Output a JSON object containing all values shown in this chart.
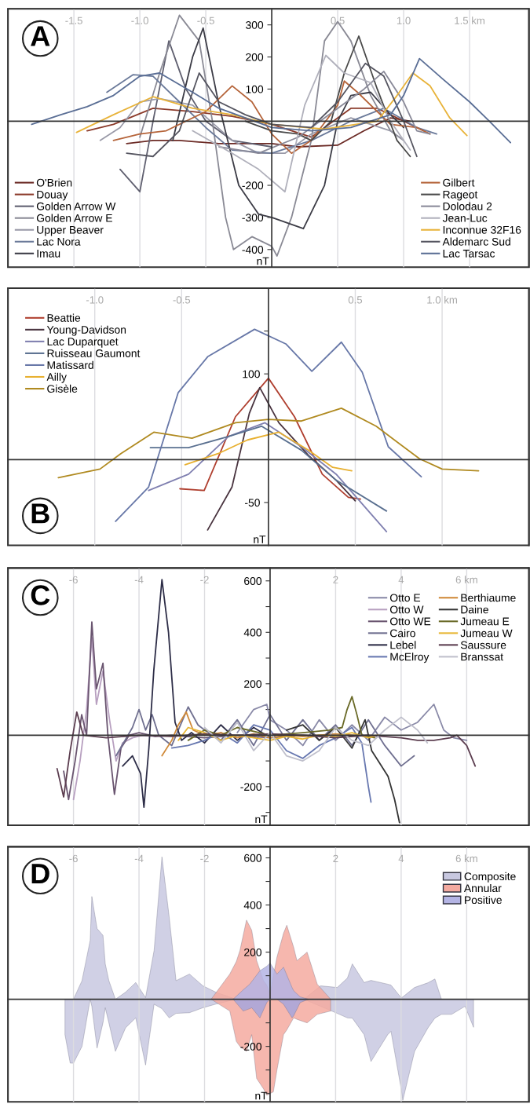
{
  "chart_data": [
    {
      "type": "line",
      "annotations": [
        "A"
      ],
      "ylabel": "nT",
      "xlim": [
        -2.0,
        1.95
      ],
      "ylim": [
        -455,
        350
      ],
      "grid": "x",
      "legend": "bottom",
      "xticks": [
        -1.5,
        {
          "value": -1.0,
          "label": "-1.0"
        },
        -0.5,
        0.5,
        {
          "value": 1.0,
          "label": "1.0"
        },
        {
          "value": 1.5,
          "label": "1.5 km"
        }
      ],
      "yticks": [
        300,
        200,
        100,
        {
          "value": -100,
          "label": null
        },
        -200,
        -300,
        -400
      ],
      "series": [
        {
          "name": "O'Brien",
          "color": "#6b2a25",
          "x": [
            -1.1,
            -0.9,
            -0.7,
            -0.4,
            0,
            0.2,
            0.5,
            0.7,
            0.9,
            1.05
          ],
          "values": [
            -70,
            -60,
            -60,
            -70,
            -70,
            -80,
            -75,
            -30,
            10,
            0
          ]
        },
        {
          "name": "Douay",
          "color": "#8b3a2a",
          "x": [
            -1.4,
            -1.2,
            -0.9,
            -0.6,
            -0.3,
            0,
            0.3,
            0.6,
            0.8,
            1.0,
            1.15
          ],
          "values": [
            -30,
            -10,
            40,
            30,
            15,
            -10,
            -50,
            40,
            40,
            0,
            -30
          ]
        },
        {
          "name": "Golden Arrow W",
          "color": "#606070",
          "x": [
            -1.15,
            -1.0,
            -0.9,
            -0.78,
            -0.65,
            -0.5,
            -0.3,
            0
          ],
          "values": [
            -150,
            -220,
            0,
            250,
            100,
            0,
            -60,
            -80
          ]
        },
        {
          "name": "Golden Arrow E",
          "color": "#8a8a95",
          "x": [
            -1.0,
            -0.85,
            -0.7,
            -0.55,
            -0.45,
            -0.35,
            -0.29,
            -0.15,
            0,
            0.04,
            0.15,
            0.3,
            0.4,
            0.5,
            0.6,
            0.75,
            0.9,
            1.0
          ],
          "values": [
            -50,
            150,
            330,
            250,
            0,
            -300,
            -400,
            -360,
            -390,
            -420,
            -300,
            -60,
            250,
            310,
            250,
            80,
            -30,
            -60
          ]
        },
        {
          "name": "Upper Beaver",
          "color": "#9a9aa8",
          "x": [
            -1.3,
            -1.15,
            -1.0,
            -0.85,
            -0.6,
            -0.3,
            -0.1,
            0.1,
            0.3,
            0.6,
            0.9,
            1.0
          ],
          "values": [
            -60,
            -20,
            60,
            70,
            50,
            -60,
            -100,
            -100,
            -40,
            10,
            -30,
            -60
          ]
        },
        {
          "name": "Lac Nora",
          "color": "#6b7a9a",
          "x": [
            -1.25,
            -1.05,
            -0.9,
            -0.7,
            -0.5,
            -0.3,
            0,
            0.3,
            0.6,
            0.85,
            1.1,
            1.25
          ],
          "values": [
            90,
            145,
            140,
            60,
            -20,
            -90,
            -100,
            -60,
            0,
            40,
            -20,
            -40
          ]
        },
        {
          "name": "Imau",
          "color": "#3c3c46",
          "x": [
            -0.75,
            -0.6,
            -0.52,
            -0.4,
            -0.25,
            -0.1,
            0,
            0.24,
            0.4,
            0.5,
            0.6,
            0.75,
            0.9,
            1.0
          ],
          "values": [
            -60,
            200,
            290,
            50,
            -200,
            -290,
            -300,
            -335,
            -200,
            0,
            80,
            90,
            20,
            -20
          ]
        },
        {
          "name": "Gilbert",
          "color": "#b5643a",
          "x": [
            -1.2,
            -1.0,
            -0.8,
            -0.5,
            -0.3,
            -0.15,
            0,
            0.15,
            0.3,
            0.5,
            0.55,
            0.65,
            0.9,
            1.1,
            1.2
          ],
          "values": [
            -60,
            -40,
            -30,
            30,
            110,
            60,
            -40,
            -100,
            -60,
            50,
            125,
            90,
            -10,
            -20,
            -40
          ]
        },
        {
          "name": "Rageot",
          "color": "#4a4a4a",
          "x": [
            -0.2,
            0,
            0.2,
            0.3,
            0.45,
            0.55,
            0.66,
            0.8,
            0.95,
            1.05
          ],
          "values": [
            0,
            -30,
            -40,
            -60,
            0,
            150,
            265,
            100,
            -60,
            -110
          ]
        },
        {
          "name": "Dolodau 2",
          "color": "#8a8a99",
          "x": [
            -0.4,
            -0.1,
            0.2,
            0.5,
            0.7,
            0.85,
            1.0,
            1.1,
            1.2
          ],
          "values": [
            -80,
            -100,
            -50,
            40,
            100,
            155,
            60,
            -30,
            -40
          ]
        },
        {
          "name": "Jean-Luc",
          "color": "#b0b0bb",
          "x": [
            -0.6,
            -0.3,
            -0.1,
            0.1,
            0.25,
            0.41,
            0.55,
            0.75,
            0.9,
            1.05
          ],
          "values": [
            -30,
            -100,
            -150,
            -220,
            50,
            205,
            150,
            120,
            0,
            -90
          ]
        },
        {
          "name": "Inconnue 32F16",
          "color": "#e8b33a",
          "x": [
            -1.48,
            -1.2,
            -0.9,
            -0.6,
            -0.3,
            0,
            0.4,
            0.8,
            0.95,
            1.07,
            1.2,
            1.35,
            1.48
          ],
          "values": [
            -35,
            20,
            76,
            40,
            20,
            -10,
            -25,
            0,
            80,
            150,
            110,
            10,
            -45
          ]
        },
        {
          "name": "Aldemarc Sud",
          "color": "#555560",
          "x": [
            -1.1,
            -0.9,
            -0.7,
            -0.55,
            -0.4,
            -0.2,
            0,
            0.3,
            0.5,
            0.71,
            0.85,
            1.0,
            1.1
          ],
          "values": [
            -100,
            -110,
            -30,
            150,
            60,
            20,
            -10,
            -20,
            60,
            180,
            140,
            0,
            -110
          ]
        },
        {
          "name": "Lac Tarsac",
          "color": "#5a6e95",
          "x": [
            -1.82,
            -1.6,
            -1.4,
            -1.2,
            -1.0,
            -0.85,
            -0.6,
            -0.4,
            -0.2,
            0,
            0.3,
            0.6,
            0.9,
            1.0,
            1.12,
            1.3,
            1.5,
            1.65,
            1.81
          ],
          "values": [
            -10,
            20,
            45,
            80,
            140,
            150,
            90,
            40,
            10,
            -20,
            -30,
            -20,
            20,
            80,
            195,
            130,
            60,
            0,
            -67
          ]
        }
      ]
    },
    {
      "type": "line",
      "annotations": [
        "B"
      ],
      "ylabel": "nT",
      "xlim": [
        -1.5,
        1.5
      ],
      "ylim": [
        -100,
        200
      ],
      "grid": "x",
      "legend": "top left",
      "xticks": [
        {
          "value": -1.0,
          "label": "-1.0"
        },
        -0.5,
        0.5,
        {
          "value": 1.0,
          "label": "1.0 km"
        }
      ],
      "yticks": [
        {
          "value": 150,
          "label": null
        },
        100,
        -50
      ],
      "series": [
        {
          "name": "Beattie",
          "color": "#b04030",
          "x": [
            -0.51,
            -0.37,
            -0.19,
            0,
            0.15,
            0.31,
            0.46,
            0.53
          ],
          "values": [
            -34,
            -36,
            50,
            95,
            50,
            -17,
            -44,
            -46
          ]
        },
        {
          "name": "Young-Davidson",
          "color": "#4a3540",
          "x": [
            -0.35,
            -0.21,
            -0.11,
            -0.05,
            0.06,
            0.23,
            0.39,
            0.5
          ],
          "values": [
            -82,
            -32,
            54,
            84,
            43,
            5,
            -24,
            -48
          ]
        },
        {
          "name": "Lac Duparquet",
          "color": "#8080b0",
          "x": [
            -0.69,
            -0.46,
            -0.23,
            -0.02,
            0.19,
            0.39,
            0.68
          ],
          "values": [
            -36,
            -17,
            27,
            43,
            15,
            -17,
            -84
          ]
        },
        {
          "name": "Ruisseau Gaumont",
          "color": "#5a7090",
          "x": [
            -0.68,
            -0.46,
            -0.23,
            -0.04,
            0.19,
            0.39,
            0.68
          ],
          "values": [
            14,
            14,
            27,
            39,
            11,
            -24,
            -60
          ]
        },
        {
          "name": "Matissard",
          "color": "#6878a8",
          "x": [
            -0.88,
            -0.69,
            -0.52,
            -0.35,
            -0.08,
            0.1,
            0.25,
            0.42,
            0.54,
            0.69,
            0.88
          ],
          "values": [
            -72,
            -32,
            78,
            120,
            152,
            135,
            103,
            137,
            102,
            15,
            -20
          ]
        },
        {
          "name": "Ailly",
          "color": "#e8b030",
          "x": [
            -0.48,
            -0.29,
            -0.12,
            0.06,
            0.23,
            0.37,
            0.48
          ],
          "values": [
            -6,
            7,
            23,
            32,
            11,
            -9,
            -13
          ]
        },
        {
          "name": "Gisèle",
          "color": "#b08a20",
          "x": [
            -1.21,
            -0.97,
            -0.85,
            -0.66,
            -0.44,
            -0.19,
            0,
            0.19,
            0.42,
            0.62,
            0.87,
            1.0,
            1.21
          ],
          "values": [
            -21,
            -11,
            7,
            32,
            25,
            43,
            47,
            45,
            60,
            39,
            1,
            -11,
            -13
          ]
        }
      ]
    },
    {
      "type": "line",
      "annotations": [
        "C"
      ],
      "ylabel": "nT",
      "xlim": [
        -8,
        7.9
      ],
      "ylim": [
        -350,
        650
      ],
      "grid": "x",
      "legend": "top right",
      "xticks": [
        -6,
        -4,
        -2,
        2,
        4,
        {
          "value": 6,
          "label": "6 km"
        }
      ],
      "yticks": [
        600,
        {
          "value": 500,
          "label": null
        },
        400,
        {
          "value": 300,
          "label": null
        },
        200,
        {
          "value": 100,
          "label": null
        },
        {
          "value": -100,
          "label": null
        },
        -200,
        {
          "value": -300,
          "label": null
        }
      ],
      "series": [
        {
          "name": "Otto E",
          "color": "#8a8aa8",
          "x": [
            -1.0,
            -0.5,
            -0.1,
            0,
            0.5,
            1.0,
            1.5,
            2.0,
            2.5,
            3.0,
            3.5,
            4.0,
            4.5,
            5.0,
            5.3,
            5.6,
            6.0
          ],
          "values": [
            10,
            100,
            120,
            60,
            20,
            -40,
            60,
            -20,
            40,
            -20,
            70,
            20,
            50,
            120,
            20,
            -10,
            -20
          ]
        },
        {
          "name": "Otto W",
          "color": "#b8a0c0",
          "x": [
            -6.0,
            -5.8,
            -5.6,
            -5.44,
            -5.3,
            -5.1,
            -4.9,
            -4.7,
            -4.5,
            -4.2,
            -3.9,
            -3.5
          ],
          "values": [
            -250,
            -100,
            100,
            380,
            120,
            250,
            60,
            -100,
            -30,
            -10,
            0,
            -5
          ]
        },
        {
          "name": "Otto WE",
          "color": "#6a5570",
          "x": [
            -6.3,
            -6.15,
            -5.95,
            -5.75,
            -5.6,
            -5.44,
            -5.3,
            -5.1,
            -4.95,
            -4.75,
            -4.55,
            -4.3,
            -4.0,
            -3.5,
            -3.0,
            -2.0,
            -1.0,
            0,
            1,
            2,
            3
          ],
          "values": [
            -140,
            -250,
            -100,
            80,
            0,
            440,
            180,
            280,
            0,
            -230,
            -50,
            0,
            10,
            -5,
            0,
            -10,
            0,
            -10,
            0,
            -5,
            0
          ]
        },
        {
          "name": "Cairo",
          "color": "#707090",
          "x": [
            -4.7,
            -4.2,
            -4.0,
            -3.8,
            -3.6,
            -3.4,
            -3.0,
            -2.5,
            -2.2,
            -2.0,
            -1.5,
            -1.0,
            -0.5,
            0,
            0.5,
            1.0,
            1.5,
            2.0,
            2.5,
            3.0,
            3.5,
            4.0,
            4.4
          ],
          "values": [
            -80,
            30,
            100,
            20,
            80,
            0,
            -40,
            110,
            40,
            20,
            -20,
            60,
            -40,
            80,
            -20,
            60,
            -20,
            40,
            -40,
            60,
            -40,
            -120,
            -80
          ]
        },
        {
          "name": "Lebel",
          "color": "#2e2e48",
          "x": [
            -4.5,
            -4.2,
            -3.95,
            -3.85,
            -3.7,
            -3.55,
            -3.3,
            -3.1,
            -2.9,
            -2.7,
            -2.4,
            -2.0,
            -1.5,
            -1.0,
            -0.5,
            0
          ],
          "values": [
            -120,
            -80,
            -150,
            -280,
            -50,
            250,
            605,
            400,
            50,
            -20,
            10,
            -30,
            40,
            -20,
            30,
            -10
          ]
        },
        {
          "name": "McElroy",
          "color": "#6878b0",
          "x": [
            -3.0,
            -2.5,
            -2.0,
            -1.5,
            -1.0,
            -0.5,
            0,
            0.5,
            1.0,
            1.5,
            2.0,
            2.5,
            2.8,
            3.0,
            3.08
          ],
          "values": [
            -50,
            -40,
            -20,
            10,
            -30,
            40,
            20,
            -60,
            -90,
            -40,
            -10,
            30,
            -30,
            -200,
            -260
          ]
        },
        {
          "name": "Berthiaume",
          "color": "#d08a3a",
          "x": [
            -3.3,
            -3.0,
            -2.8,
            -2.56,
            -2.35,
            -2.0,
            -1.5,
            -1.0,
            -0.5,
            0,
            0.5,
            1.0,
            2.0,
            3.0,
            3.3
          ],
          "values": [
            -80,
            -20,
            40,
            90,
            20,
            0,
            10,
            -10,
            5,
            -10,
            0,
            -5,
            5,
            -5,
            0
          ]
        },
        {
          "name": "Daine",
          "color": "#353535",
          "x": [
            0.5,
            1.0,
            1.5,
            2.0,
            2.5,
            2.9,
            3.1,
            3.3,
            3.6,
            3.8,
            3.95
          ],
          "values": [
            20,
            40,
            -20,
            30,
            -50,
            60,
            -60,
            -100,
            -160,
            -250,
            -340
          ]
        },
        {
          "name": "Jumeau E",
          "color": "#6a6a28",
          "x": [
            -2.5,
            -2.0,
            -1.5,
            -1.0,
            0,
            1.0,
            1.8,
            2.2,
            2.35,
            2.5,
            2.65,
            2.8,
            3.2
          ],
          "values": [
            -20,
            20,
            0,
            30,
            0,
            10,
            20,
            30,
            100,
            150,
            80,
            0,
            -10
          ]
        },
        {
          "name": "Jumeau W",
          "color": "#e8b838",
          "x": [
            -2.8,
            -2.5,
            -2.0,
            -1.5,
            -1.0,
            -0.5,
            0,
            0.5,
            1.0,
            1.5,
            2.0,
            2.5,
            3.0,
            3.3
          ],
          "values": [
            -20,
            30,
            10,
            -20,
            0,
            -10,
            -20,
            -5,
            -15,
            0,
            -5,
            10,
            -10,
            0
          ]
        },
        {
          "name": "Saussure",
          "color": "#5c3e50",
          "x": [
            -6.5,
            -6.3,
            -6.1,
            -5.9,
            -5.7,
            -5,
            -4,
            -3,
            -2,
            -1,
            0,
            1,
            2,
            3,
            4,
            4.5,
            5.0,
            5.5,
            5.7,
            6.0,
            6.26
          ],
          "values": [
            -130,
            -240,
            -60,
            90,
            0,
            -10,
            0,
            -5,
            5,
            0,
            5,
            0,
            -10,
            0,
            -10,
            -20,
            -20,
            -10,
            0,
            -40,
            -120
          ]
        },
        {
          "name": "Branssat",
          "color": "#c0c0cc",
          "x": [
            -2.0,
            -1.5,
            -1.0,
            -0.5,
            0,
            0.5,
            1.0,
            1.5,
            2.0,
            2.5,
            3.0,
            3.5,
            4.0,
            4.5,
            4.8
          ],
          "values": [
            30,
            -30,
            50,
            -60,
            10,
            -80,
            -100,
            -60,
            30,
            -20,
            -40,
            20,
            70,
            20,
            -30
          ]
        }
      ]
    },
    {
      "type": "area",
      "annotations": [
        "D"
      ],
      "ylabel": "nT",
      "xlim": [
        -8,
        7.9
      ],
      "ylim": [
        -435,
        647
      ],
      "grid": "x",
      "legend": "top right",
      "xticks": [
        -6,
        -4,
        -2,
        2,
        4,
        {
          "value": 6,
          "label": "6 km"
        }
      ],
      "yticks": [
        600,
        {
          "value": 500,
          "label": null
        },
        400,
        {
          "value": 300,
          "label": null
        },
        200,
        {
          "value": 100,
          "label": null
        },
        {
          "value": -100,
          "label": null
        },
        -200,
        {
          "value": -300,
          "label": null
        },
        {
          "value": -400,
          "label": null
        }
      ],
      "series": [
        {
          "name": "Composite",
          "color": "#c8c8e0",
          "x": [
            -6.26,
            -6.1,
            -6.0,
            -5.74,
            -5.49,
            -5.44,
            -5.28,
            -5.1,
            -5.03,
            -4.92,
            -4.72,
            -4.41,
            -4.1,
            -3.8,
            -3.54,
            -3.3,
            -3.08,
            -2.87,
            -2.46,
            -2.05,
            -1.64,
            -1.03,
            0,
            1.03,
            1.54,
            2.05,
            2.36,
            2.51,
            2.87,
            3.08,
            3.59,
            3.69,
            4.0,
            4.05,
            4.41,
            4.82,
            5.03,
            5.23,
            5.54,
            5.95,
            6.21
          ],
          "values": [
            0,
            0,
            0,
            79,
            250,
            436,
            300,
            271,
            150,
            79,
            0,
            30,
            71,
            7,
            207,
            604,
            350,
            79,
            107,
            57,
            29,
            0,
            0,
            0,
            57,
            50,
            90,
            150,
            71,
            80,
            64,
            60,
            7,
            10,
            50,
            70,
            86,
            0,
            0,
            0,
            0
          ]
        },
        {
          "color": "#c8c8e0",
          "x": [
            -6.26,
            -6.1,
            -6.0,
            -5.74,
            -5.49,
            -5.44,
            -5.28,
            -5.1,
            -5.03,
            -4.92,
            -4.72,
            -4.41,
            -4.1,
            -3.8,
            -3.54,
            -3.3,
            -3.08,
            -2.87,
            -2.46,
            -2.05,
            -1.64,
            -1.03,
            0,
            1.03,
            1.54,
            2.05,
            2.36,
            2.51,
            2.87,
            3.08,
            3.59,
            3.69,
            4.0,
            4.05,
            4.41,
            4.82,
            5.03,
            5.23,
            5.54,
            5.95,
            6.21
          ],
          "values": [
            -150,
            -271,
            -271,
            -200,
            0,
            -30,
            -207,
            -100,
            -36,
            -100,
            -221,
            -121,
            -79,
            -279,
            -21,
            -40,
            -79,
            -60,
            -57,
            -36,
            -20,
            0,
            0,
            0,
            -30,
            -60,
            -79,
            -80,
            -150,
            -264,
            -150,
            -136,
            -380,
            -429,
            -221,
            -121,
            -80,
            -64,
            -64,
            -30,
            -119
          ]
        },
        {
          "name": "Annular",
          "color": "#f4aaa0",
          "x": [
            -1.8,
            -1.23,
            -1.03,
            -0.92,
            -0.72,
            -0.56,
            -0.41,
            -0.2,
            -0.1,
            0,
            0.1,
            0.21,
            0.41,
            0.51,
            0.72,
            0.82,
            1.13,
            1.44,
            1.85
          ],
          "values": [
            0,
            107,
            160,
            207,
            336,
            293,
            164,
            79,
            60,
            21,
            100,
            179,
            280,
            314,
            220,
            164,
            200,
            64,
            0
          ]
        },
        {
          "color": "#f4aaa0",
          "x": [
            -1.8,
            -1.23,
            -1.03,
            -0.92,
            -0.72,
            -0.56,
            -0.41,
            -0.2,
            -0.1,
            0,
            0.1,
            0.21,
            0.41,
            0.51,
            0.72,
            0.82,
            1.13,
            1.44,
            1.85
          ],
          "values": [
            0,
            -50,
            -179,
            -200,
            -221,
            -150,
            -336,
            -380,
            -407,
            -400,
            -393,
            -300,
            -150,
            -130,
            -79,
            -85,
            -100,
            -64,
            -50
          ]
        },
        {
          "name": "Positive",
          "color": "#b4b4e4",
          "x": [
            -1.13,
            -0.82,
            -0.62,
            -0.56,
            -0.31,
            -0.1,
            0,
            0.21,
            0.41,
            0.67,
            0.72,
            0.92,
            1.18
          ],
          "values": [
            0,
            40,
            64,
            75,
            121,
            140,
            154,
            107,
            136,
            50,
            36,
            10,
            0
          ]
        },
        {
          "color": "#a6a6dc",
          "x": [
            -1.13,
            -0.82,
            -0.62,
            -0.56,
            -0.31,
            -0.1,
            0,
            0.21,
            0.41,
            0.67,
            0.72,
            0.92,
            1.18
          ],
          "values": [
            0,
            -50,
            -40,
            -36,
            -79,
            -14,
            0,
            0,
            -21,
            -79,
            -70,
            -14,
            0
          ]
        }
      ]
    }
  ]
}
